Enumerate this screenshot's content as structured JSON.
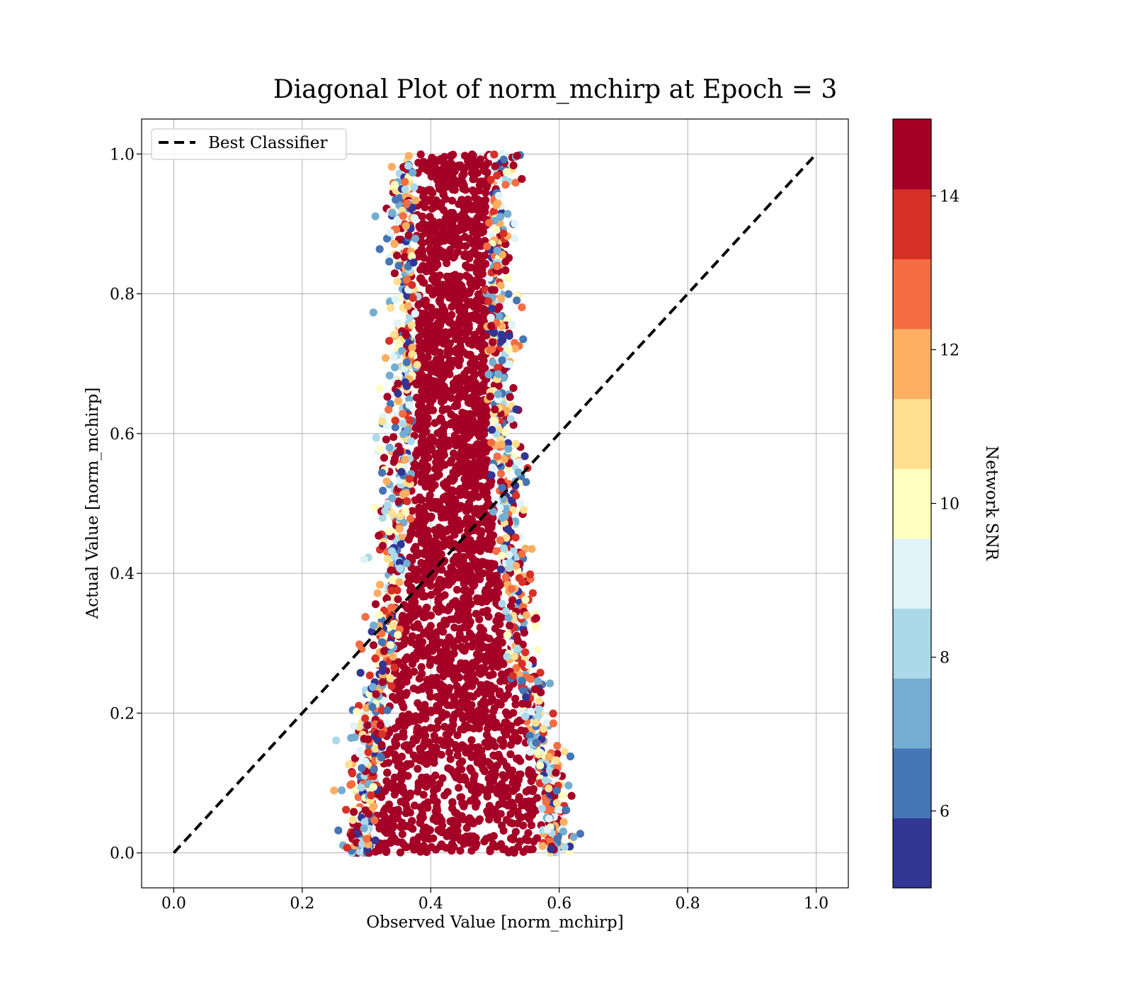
{
  "chart_data": {
    "type": "scatter",
    "title": "Diagonal Plot of norm_mchirp at Epoch = 3",
    "xlabel": "Observed Value [norm_mchirp]",
    "ylabel": "Actual Value [norm_mchirp]",
    "xlim": [
      -0.05,
      1.05
    ],
    "ylim": [
      -0.05,
      1.05
    ],
    "xticks": [
      "0.0",
      "0.2",
      "0.4",
      "0.6",
      "0.8",
      "1.0"
    ],
    "yticks": [
      "0.0",
      "0.2",
      "0.4",
      "0.6",
      "0.8",
      "1.0"
    ],
    "grid": true,
    "legend": {
      "position": "top-left",
      "entries": [
        {
          "label": "Best Classifier",
          "style": "dashed",
          "color": "#000000"
        }
      ]
    },
    "reference_line": {
      "x": [
        0.0,
        1.0
      ],
      "y": [
        0.0,
        1.0
      ]
    },
    "colorbar": {
      "label": "Network SNR",
      "min": 5,
      "max": 15,
      "tick_values": [
        6,
        8,
        10,
        12,
        14
      ],
      "ticks": [
        "6",
        "8",
        "10",
        "12",
        "14"
      ],
      "colors": [
        "#313695",
        "#4575b4",
        "#74add1",
        "#abd9e9",
        "#e0f3f8",
        "#ffffbf",
        "#fee090",
        "#fdae61",
        "#f46d43",
        "#d73027",
        "#a50026"
      ]
    },
    "point_cloud_profile": {
      "dominant_color": "#a50026",
      "note_y": [
        0.0,
        0.1,
        0.2,
        0.3,
        0.4,
        0.5,
        0.6,
        0.7,
        0.8,
        0.9,
        1.0
      ],
      "x_left": [
        0.305,
        0.31,
        0.325,
        0.34,
        0.355,
        0.36,
        0.365,
        0.37,
        0.37,
        0.37,
        0.37
      ],
      "x_right": [
        0.585,
        0.575,
        0.545,
        0.525,
        0.515,
        0.505,
        0.5,
        0.495,
        0.495,
        0.495,
        0.5
      ]
    }
  }
}
